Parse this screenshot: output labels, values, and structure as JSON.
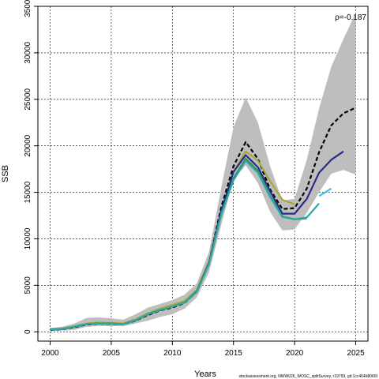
{
  "chart_data": {
    "type": "line",
    "xlabel": "Years",
    "ylabel": "SSB",
    "xlim": [
      1999,
      2026
    ],
    "ylim": [
      -1000,
      35000
    ],
    "x_ticks": [
      2000,
      2005,
      2010,
      2015,
      2020,
      2025
    ],
    "y_ticks": [
      0,
      5000,
      10000,
      15000,
      20000,
      25000,
      30000,
      35000
    ],
    "grid": true,
    "annotation": "ρ=-0.187",
    "footer": "stockassessment.org, NWW026_WOSC_splitSurvey, r19759, git:1cc464b8066f",
    "band": {
      "x": [
        2000,
        2001,
        2002,
        2003,
        2004,
        2005,
        2006,
        2007,
        2008,
        2009,
        2010,
        2011,
        2012,
        2013,
        2014,
        2015,
        2016,
        2017,
        2018,
        2019,
        2020,
        2021,
        2022,
        2023,
        2024,
        2025
      ],
      "upper": [
        400,
        550,
        900,
        1500,
        1550,
        1450,
        1300,
        1900,
        2600,
        3000,
        3400,
        4000,
        5200,
        8600,
        15500,
        22000,
        25200,
        22500,
        17800,
        14100,
        14300,
        18500,
        24000,
        28500,
        31500,
        34300
      ],
      "lower": [
        100,
        130,
        220,
        550,
        620,
        600,
        600,
        900,
        1200,
        1600,
        1900,
        2500,
        3700,
        6400,
        11500,
        16400,
        17900,
        16000,
        12900,
        10900,
        11000,
        12800,
        15000,
        17000,
        17400,
        16900
      ]
    },
    "series": [
      {
        "style": "dashed",
        "color": "#000000",
        "x": [
          2000,
          2001,
          2002,
          2003,
          2004,
          2005,
          2006,
          2007,
          2008,
          2009,
          2010,
          2011,
          2012,
          2013,
          2014,
          2015,
          2016,
          2017,
          2018,
          2019,
          2020,
          2021,
          2022,
          2023,
          2024,
          2025
        ],
        "values": [
          200,
          280,
          490,
          780,
          870,
          850,
          820,
          1200,
          1800,
          2300,
          2600,
          3100,
          4300,
          7500,
          13400,
          17800,
          20400,
          18600,
          15300,
          13200,
          13300,
          15400,
          19300,
          22200,
          23500,
          24100
        ]
      },
      {
        "color": "#a8a83a",
        "x": [
          2000,
          2001,
          2002,
          2003,
          2004,
          2005,
          2006,
          2007,
          2008,
          2009,
          2010,
          2011,
          2012,
          2013,
          2014,
          2015,
          2016,
          2017,
          2018,
          2019,
          2020
        ],
        "values": [
          300,
          350,
          600,
          900,
          1000,
          950,
          900,
          1350,
          2000,
          2500,
          2900,
          3300,
          4500,
          7600,
          12900,
          17200,
          19400,
          18400,
          16200,
          14200,
          13700
        ]
      },
      {
        "color": "#2a2a8a",
        "x": [
          2000,
          2001,
          2002,
          2003,
          2004,
          2005,
          2006,
          2007,
          2008,
          2009,
          2010,
          2011,
          2012,
          2013,
          2014,
          2015,
          2016,
          2017,
          2018,
          2019,
          2020,
          2021,
          2022,
          2023,
          2024
        ],
        "values": [
          220,
          310,
          540,
          820,
          890,
          870,
          830,
          1230,
          1880,
          2330,
          2700,
          3150,
          4350,
          7400,
          13000,
          17200,
          19000,
          17700,
          15100,
          12700,
          12700,
          14300,
          17100,
          18500,
          19400
        ]
      },
      {
        "color": "#1a9850",
        "x": [
          2000,
          2001,
          2002,
          2003,
          2004,
          2005,
          2006,
          2007,
          2008,
          2009,
          2010,
          2011,
          2012,
          2013,
          2014,
          2015,
          2016,
          2017,
          2018,
          2019,
          2020,
          2021
        ],
        "values": [
          240,
          320,
          560,
          830,
          900,
          880,
          840,
          1250,
          1900,
          2350,
          2700,
          3150,
          4300,
          7300,
          12700,
          16500,
          18600,
          17300,
          14600,
          12400,
          12100,
          12200
        ]
      },
      {
        "color": "#2aa8a8",
        "x": [
          2000,
          2001,
          2002,
          2003,
          2004,
          2005,
          2006,
          2007,
          2008,
          2009,
          2010,
          2011,
          2012,
          2013,
          2014,
          2015,
          2016,
          2017,
          2018,
          2019,
          2020,
          2021,
          2022
        ],
        "values": [
          230,
          315,
          550,
          825,
          895,
          875,
          835,
          1240,
          1890,
          2340,
          2690,
          3140,
          4290,
          7250,
          12600,
          16300,
          18400,
          17100,
          14500,
          12350,
          12100,
          12300,
          13800
        ]
      },
      {
        "color": "#4ab8e8",
        "x": [
          2022,
          2023
        ],
        "values": [
          14600,
          15400
        ]
      }
    ]
  }
}
